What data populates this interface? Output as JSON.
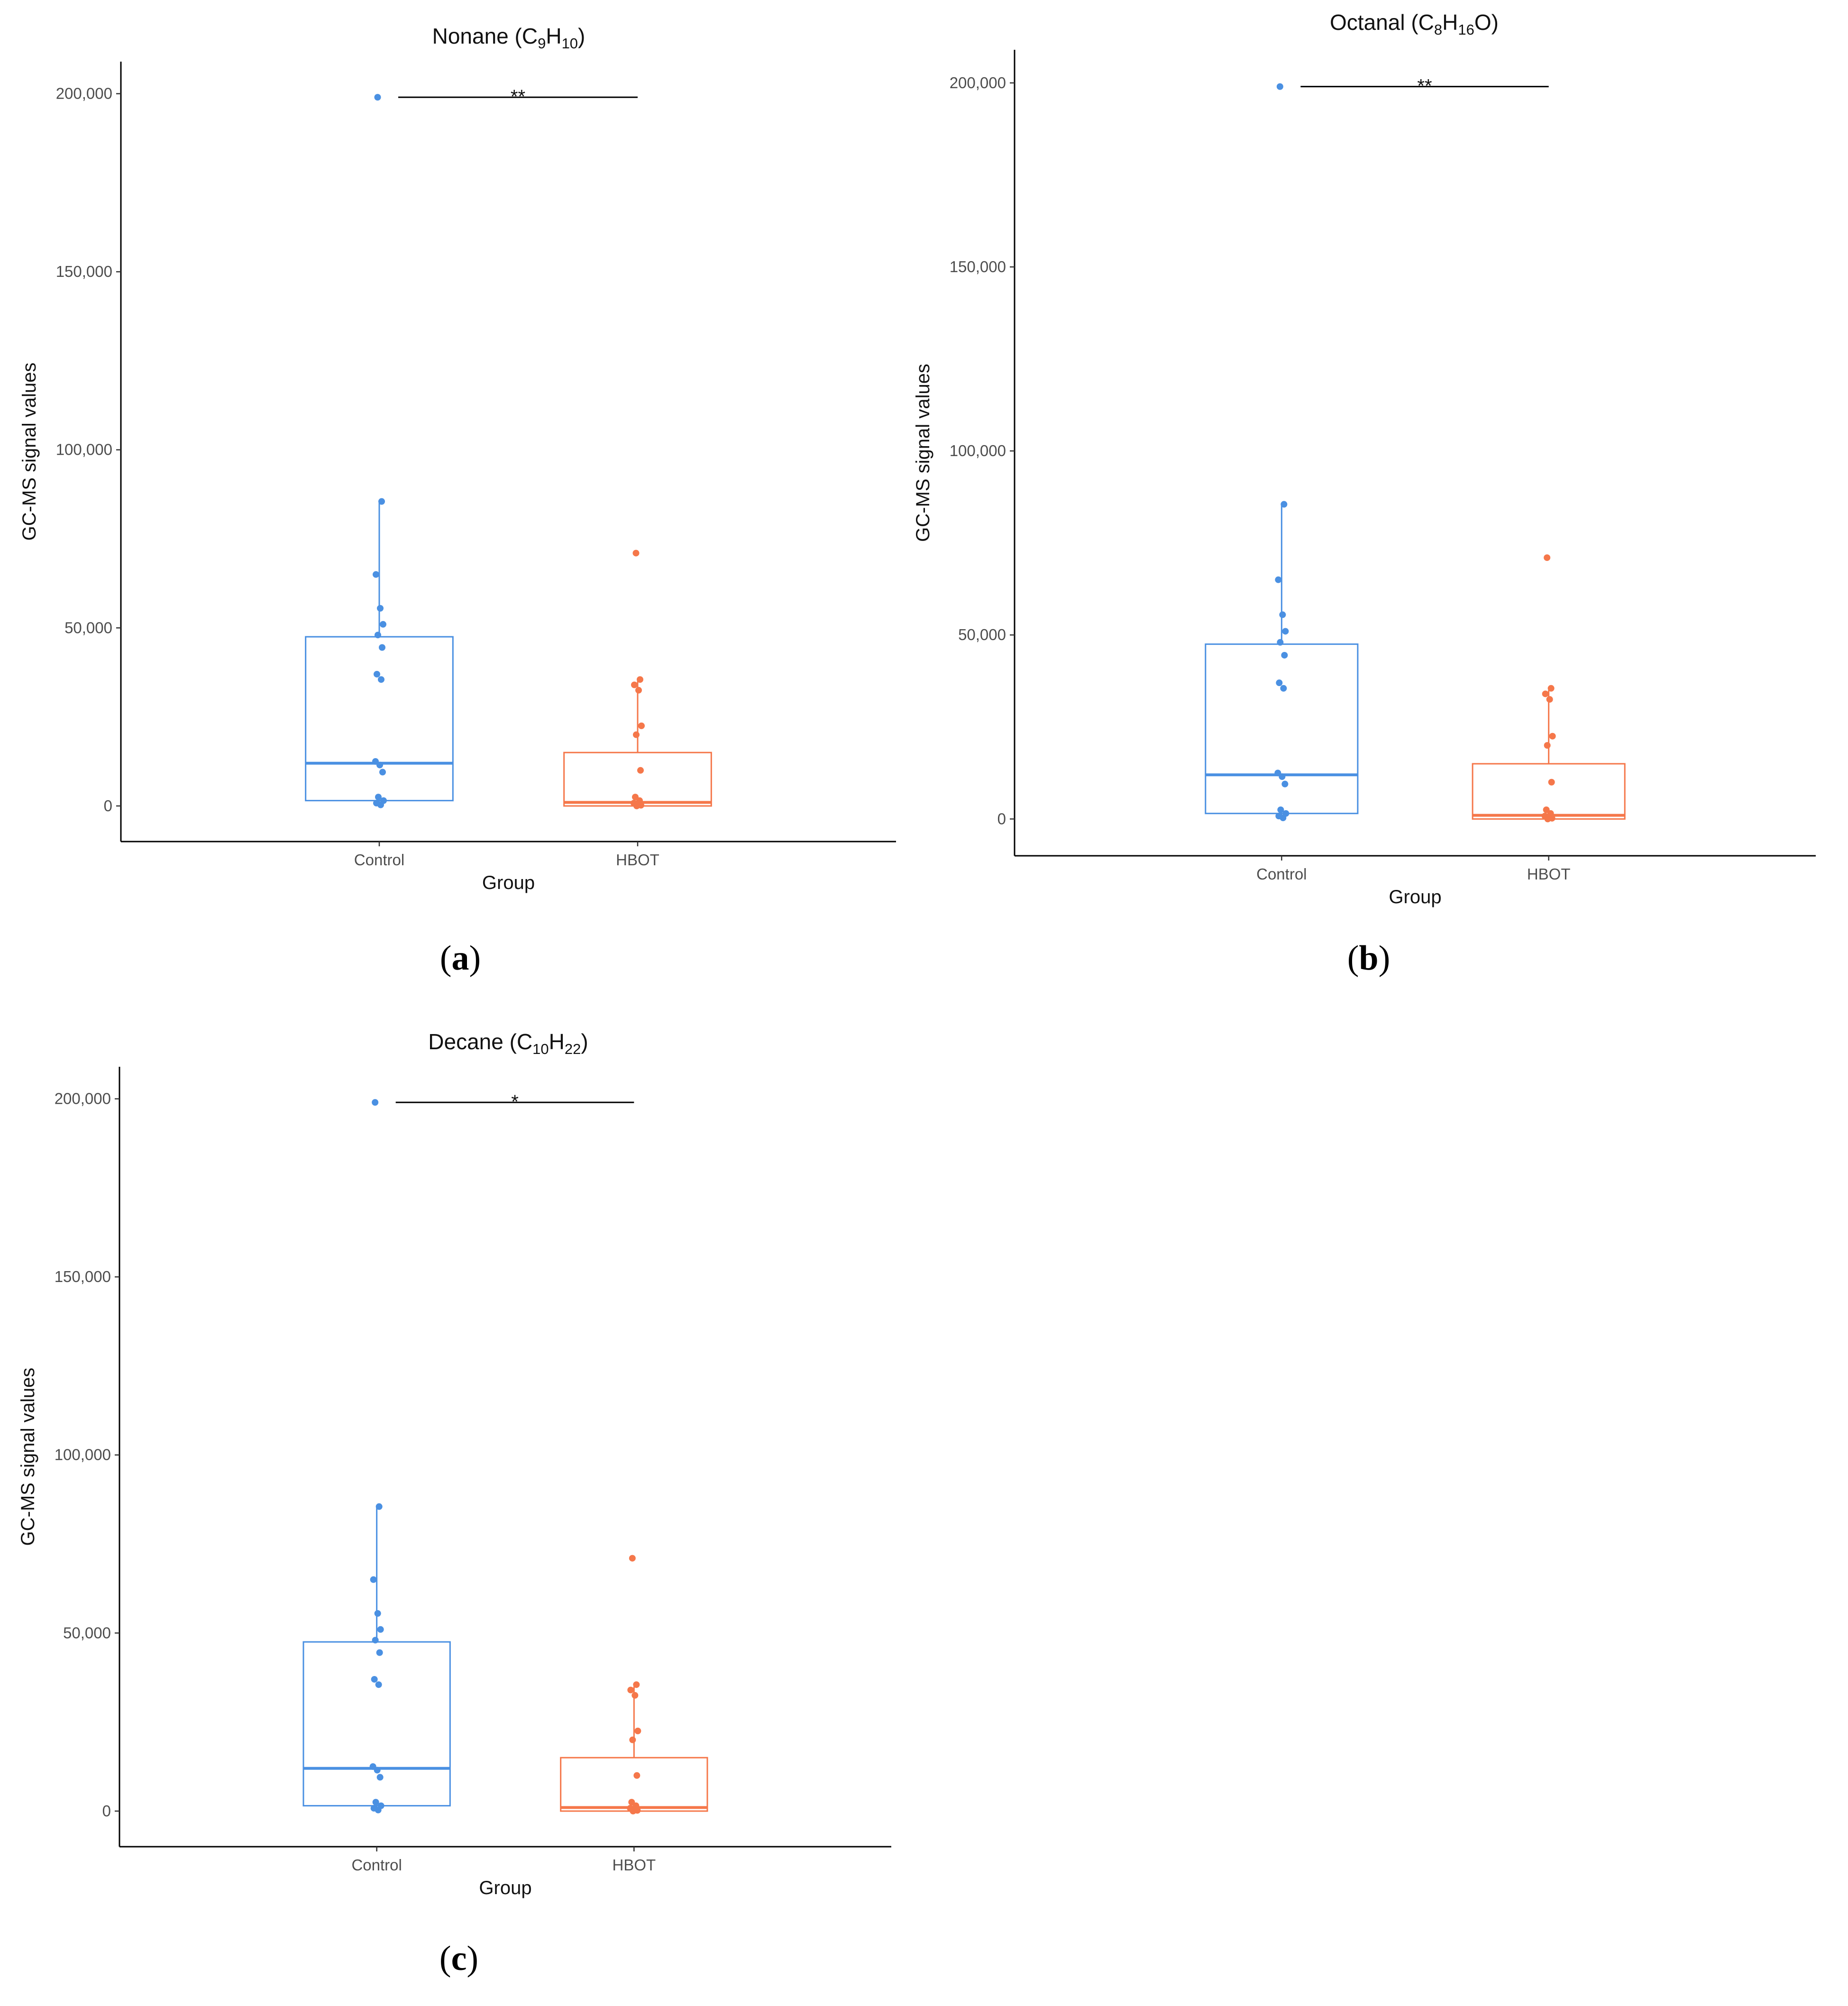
{
  "chart_data": [
    {
      "type": "box",
      "panel_label": "a",
      "title": {
        "prefix": "Nonane (C",
        "sub1": "9",
        "mid": "H",
        "sub2": "10",
        "suffix": ")"
      },
      "xlabel": "Group",
      "ylabel": "GC-MS signal values",
      "categories": [
        "Control",
        "HBOT"
      ],
      "ylim": [
        -10000,
        209000
      ],
      "yticks": [
        0,
        50000,
        100000,
        150000,
        200000
      ],
      "ytick_labels": [
        "0",
        "50,000",
        "100,000",
        "150,000",
        "200,000"
      ],
      "significance": {
        "label": "**",
        "y": 199000,
        "from": "Control",
        "to": "HBOT"
      },
      "series": [
        {
          "name": "Control",
          "color": "#4a90e2",
          "box": {
            "q1": 1500,
            "median": 12000,
            "q3": 47500,
            "whisker_low": 0,
            "whisker_high": 85500
          },
          "points": [
            199000,
            85500,
            65000,
            55500,
            51000,
            48000,
            44500,
            37000,
            35500,
            12500,
            11500,
            9500,
            2500,
            1500,
            800,
            300
          ]
        },
        {
          "name": "HBOT",
          "color": "#f5774a",
          "box": {
            "q1": 0,
            "median": 1000,
            "q3": 15000,
            "whisker_low": 0,
            "whisker_high": 35000
          },
          "points": [
            71000,
            35500,
            34000,
            32500,
            22500,
            20000,
            10000,
            2500,
            1500,
            800,
            500,
            200,
            0
          ]
        }
      ]
    },
    {
      "type": "box",
      "panel_label": "b",
      "title": {
        "prefix": "Octanal (C",
        "sub1": "8",
        "mid": "H",
        "sub2": "16",
        "suffix": "O)"
      },
      "xlabel": "Group",
      "ylabel": "GC-MS signal values",
      "categories": [
        "Control",
        "HBOT"
      ],
      "ylim": [
        -10000,
        209000
      ],
      "yticks": [
        0,
        50000,
        100000,
        150000,
        200000
      ],
      "ytick_labels": [
        "0",
        "50,000",
        "100,000",
        "150,000",
        "200,000"
      ],
      "significance": {
        "label": "**",
        "y": 199000,
        "from": "Control",
        "to": "HBOT"
      },
      "series": [
        {
          "name": "Control",
          "color": "#4a90e2",
          "box": {
            "q1": 1500,
            "median": 12000,
            "q3": 47500,
            "whisker_low": 0,
            "whisker_high": 85500
          },
          "points": [
            199000,
            85500,
            65000,
            55500,
            51000,
            48000,
            44500,
            37000,
            35500,
            12500,
            11500,
            9500,
            2500,
            1500,
            800,
            300
          ]
        },
        {
          "name": "HBOT",
          "color": "#f5774a",
          "box": {
            "q1": 0,
            "median": 1000,
            "q3": 15000,
            "whisker_low": 0,
            "whisker_high": 35000
          },
          "points": [
            71000,
            35500,
            34000,
            32500,
            22500,
            20000,
            10000,
            2500,
            1500,
            800,
            500,
            200,
            0
          ]
        }
      ]
    },
    {
      "type": "box",
      "panel_label": "c",
      "title": {
        "prefix": "Decane (C",
        "sub1": "10",
        "mid": "H",
        "sub2": "22",
        "suffix": ")"
      },
      "xlabel": "Group",
      "ylabel": "GC-MS signal values",
      "categories": [
        "Control",
        "HBOT"
      ],
      "ylim": [
        -10000,
        209000
      ],
      "yticks": [
        0,
        50000,
        100000,
        150000,
        200000
      ],
      "ytick_labels": [
        "0",
        "50,000",
        "100,000",
        "150,000",
        "200,000"
      ],
      "significance": {
        "label": "*",
        "y": 199000,
        "from": "Control",
        "to": "HBOT"
      },
      "series": [
        {
          "name": "Control",
          "color": "#4a90e2",
          "box": {
            "q1": 1500,
            "median": 12000,
            "q3": 47500,
            "whisker_low": 0,
            "whisker_high": 85500
          },
          "points": [
            199000,
            85500,
            65000,
            55500,
            51000,
            48000,
            44500,
            37000,
            35500,
            12500,
            11500,
            9500,
            2500,
            1500,
            800,
            300
          ]
        },
        {
          "name": "HBOT",
          "color": "#f5774a",
          "box": {
            "q1": 0,
            "median": 1000,
            "q3": 15000,
            "whisker_low": 0,
            "whisker_high": 35000
          },
          "points": [
            71000,
            35500,
            34000,
            32500,
            22500,
            20000,
            10000,
            2500,
            1500,
            800,
            500,
            200,
            0
          ]
        }
      ]
    }
  ]
}
